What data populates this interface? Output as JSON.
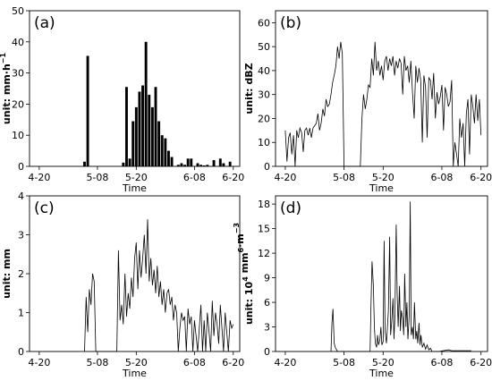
{
  "chart_data": [
    {
      "id": "a",
      "type": "bar",
      "panel_label": "(a)",
      "xlabel": "Time",
      "ylabel_main": "unit: mm·h",
      "ylabel_sup": "−1",
      "ylim": [
        0,
        50
      ],
      "yticks": [
        0,
        10,
        20,
        30,
        40,
        50
      ],
      "xlim": [
        -3,
        62
      ],
      "xticks": [
        0,
        18,
        30,
        48,
        60
      ],
      "xticklabels": [
        "4-20",
        "5-08",
        "5-20",
        "6-08",
        "6-20"
      ],
      "x": [
        14,
        15,
        26,
        27,
        28,
        29,
        30,
        31,
        32,
        33,
        34,
        35,
        36,
        37,
        38,
        39,
        40,
        41,
        43,
        44,
        45,
        46,
        47,
        49,
        50,
        51,
        52,
        54,
        56,
        57,
        59
      ],
      "values": [
        1.5,
        35.5,
        1.2,
        25.5,
        2.5,
        14.5,
        19,
        24,
        26,
        40,
        23,
        19,
        25.5,
        14.5,
        10,
        9,
        5,
        3,
        0.5,
        1,
        0.5,
        2.5,
        2.5,
        1,
        0.5,
        0.3,
        0.5,
        2,
        2.5,
        1,
        1.5
      ]
    },
    {
      "id": "b",
      "type": "line",
      "panel_label": "(b)",
      "xlabel": "Time",
      "ylabel_main": "unit: dBZ",
      "ylim": [
        0,
        65
      ],
      "yticks": [
        0,
        10,
        20,
        30,
        40,
        50,
        60
      ],
      "xlim": [
        -3,
        62
      ],
      "xticks": [
        0,
        18,
        30,
        48,
        60
      ],
      "xticklabels": [
        "4-20",
        "5-08",
        "5-20",
        "6-08",
        "6-20"
      ],
      "x": [
        0,
        0.5,
        1,
        1.5,
        2,
        2.5,
        3,
        3.5,
        4,
        4.5,
        5,
        5.5,
        6,
        6.5,
        7,
        7.5,
        8,
        8.5,
        9,
        9.5,
        10,
        10.5,
        11,
        11.5,
        12,
        12.5,
        13,
        13.5,
        14,
        14.5,
        15,
        15.5,
        16,
        16.5,
        17,
        17.5,
        18,
        18.5,
        19,
        19.5,
        20,
        20.5,
        21,
        21.5,
        22,
        22.5,
        23,
        23.5,
        24,
        24.5,
        25,
        25.5,
        26,
        26.5,
        27,
        27.5,
        28,
        28.5,
        29,
        29.5,
        30,
        30.5,
        31,
        31.5,
        32,
        32.5,
        33,
        33.5,
        34,
        34.5,
        35,
        35.5,
        36,
        36.5,
        37,
        37.5,
        38,
        38.5,
        39,
        39.5,
        40,
        40.5,
        41,
        41.5,
        42,
        42.5,
        43,
        43.5,
        44,
        44.5,
        45,
        45.5,
        46,
        46.5,
        47,
        47.5,
        48,
        48.5,
        49,
        49.5,
        50,
        50.5,
        51,
        51.5,
        52,
        52.5,
        53,
        53.5,
        54,
        54.5,
        55,
        55.5,
        56,
        56.5,
        57,
        57.5,
        58,
        58.5,
        59,
        59.5,
        60
      ],
      "values": [
        15,
        2,
        12,
        14,
        5,
        13,
        0,
        15,
        12,
        16,
        14,
        6,
        15,
        16,
        13,
        16,
        12,
        16,
        17,
        18,
        22,
        15,
        18,
        24,
        21,
        28,
        25,
        26,
        30,
        35,
        38,
        42,
        50,
        45,
        52,
        47,
        0,
        0,
        0,
        0,
        0,
        0,
        0,
        0,
        0,
        0,
        0,
        20,
        30,
        24,
        28,
        34,
        33,
        45,
        38,
        52,
        40,
        44,
        38,
        42,
        36,
        44,
        46,
        40,
        45,
        42,
        46,
        38,
        44,
        41,
        45,
        43,
        30,
        46,
        40,
        42,
        35,
        44,
        31,
        20,
        42,
        35,
        41,
        36,
        10,
        38,
        33,
        12,
        37,
        36,
        28,
        39,
        20,
        31,
        26,
        29,
        34,
        15,
        33,
        30,
        25,
        27,
        36,
        0,
        10,
        5,
        0,
        20,
        12,
        18,
        0,
        22,
        28,
        5,
        30,
        25,
        18,
        30,
        19,
        28,
        13
      ]
    },
    {
      "id": "c",
      "type": "line",
      "panel_label": "(c)",
      "xlabel": "Time",
      "ylabel_main": "unit: mm",
      "ylim": [
        0,
        4
      ],
      "yticks": [
        0,
        1,
        2,
        3,
        4
      ],
      "xlim": [
        -3,
        62
      ],
      "xticks": [
        0,
        18,
        30,
        48,
        60
      ],
      "xticklabels": [
        "4-20",
        "5-08",
        "5-20",
        "6-08",
        "6-20"
      ],
      "x": [
        14,
        14.5,
        15,
        15.5,
        16,
        16.5,
        17,
        17.5,
        24,
        24.5,
        25,
        25.5,
        26,
        26.5,
        27,
        27.5,
        28,
        28.5,
        29,
        29.5,
        30,
        30.5,
        31,
        31.5,
        32,
        32.5,
        33,
        33.5,
        34,
        34.5,
        35,
        35.5,
        36,
        36.5,
        37,
        37.5,
        38,
        38.5,
        39,
        39.5,
        40,
        40.5,
        41,
        41.5,
        42,
        42.5,
        43,
        43.5,
        44,
        44.5,
        45,
        45.5,
        46,
        46.5,
        47,
        47.5,
        48,
        49,
        49.5,
        50,
        50.5,
        51,
        51.5,
        52,
        52.5,
        53,
        53.5,
        54,
        54.5,
        55,
        55.5,
        56,
        56.5,
        57,
        57.5,
        58,
        58.5,
        59,
        59.5,
        60
      ],
      "values": [
        0,
        1.4,
        0.5,
        1.6,
        1.2,
        2.0,
        1.8,
        0,
        0,
        2.6,
        0.8,
        1.2,
        0.7,
        2.0,
        0.9,
        1.5,
        1.1,
        1.9,
        1.4,
        2.4,
        2.8,
        1.6,
        2.6,
        1.9,
        2.4,
        3.0,
        2.0,
        3.4,
        1.8,
        2.4,
        1.7,
        2.1,
        1.5,
        2.2,
        1.4,
        1.8,
        1.2,
        1.6,
        1.0,
        1.5,
        1.6,
        1.2,
        1.4,
        0.8,
        1.2,
        1.0,
        0,
        0.6,
        1.0,
        0.8,
        0.9,
        0,
        1.1,
        0.7,
        0.9,
        0,
        0.8,
        0,
        0.6,
        1.2,
        0,
        0.8,
        0,
        1.0,
        0.5,
        0,
        1.3,
        0.4,
        1.0,
        0.7,
        0.2,
        1.2,
        0.6,
        0,
        1.0,
        0.5,
        0,
        0.8,
        0.6,
        0.7
      ]
    },
    {
      "id": "d",
      "type": "line",
      "panel_label": "(d)",
      "xlabel": "Time",
      "ylabel_main": "unit: 10",
      "ylabel_sup1": "4",
      "ylabel_mid": " mm",
      "ylabel_sup2": "6",
      "ylabel_end": "·m",
      "ylabel_sup3": "−3",
      "ylim": [
        0,
        19
      ],
      "yticks": [
        0,
        3,
        6,
        9,
        12,
        15,
        18
      ],
      "xlim": [
        -3,
        62
      ],
      "xticks": [
        0,
        18,
        30,
        48,
        60
      ],
      "xticklabels": [
        "4-20",
        "5-08",
        "5-20",
        "6-08",
        "6-20"
      ],
      "x": [
        14,
        14.3,
        14.6,
        15,
        15.3,
        15.6,
        16,
        26,
        26.3,
        26.6,
        27,
        27.3,
        27.6,
        28,
        28.3,
        28.6,
        29,
        29.3,
        29.6,
        30,
        30.3,
        30.6,
        31,
        31.3,
        31.6,
        32,
        32.3,
        32.6,
        33,
        33.3,
        33.6,
        34,
        34.3,
        34.6,
        35,
        35.3,
        35.6,
        36,
        36.3,
        36.6,
        37,
        37.3,
        37.6,
        38,
        38.3,
        38.6,
        39,
        39.3,
        39.6,
        40,
        40.3,
        40.6,
        41,
        41.3,
        41.6,
        42,
        42.5,
        43,
        43.5,
        44,
        44.5,
        45,
        47,
        50,
        51,
        57
      ],
      "values": [
        0,
        3.5,
        5.2,
        1.0,
        0.5,
        0.3,
        0,
        0,
        6.0,
        11.0,
        8.0,
        3.0,
        1.0,
        0.5,
        2.0,
        0.8,
        1.5,
        3.0,
        0.8,
        1.2,
        13.5,
        2.5,
        1.0,
        3.0,
        5.0,
        14.0,
        2.0,
        3.5,
        6.5,
        1.5,
        4.0,
        15.5,
        7.0,
        3.0,
        8.0,
        2.5,
        5.0,
        4.0,
        2.0,
        9.5,
        3.0,
        6.0,
        1.5,
        4.5,
        18.3,
        2.0,
        3.0,
        1.5,
        6.0,
        1.5,
        2.5,
        1.0,
        3.5,
        0.8,
        2.0,
        0.5,
        1.0,
        0.3,
        0.8,
        0.2,
        0.4,
        0,
        0,
        0.2,
        0.1,
        0.1
      ]
    }
  ]
}
